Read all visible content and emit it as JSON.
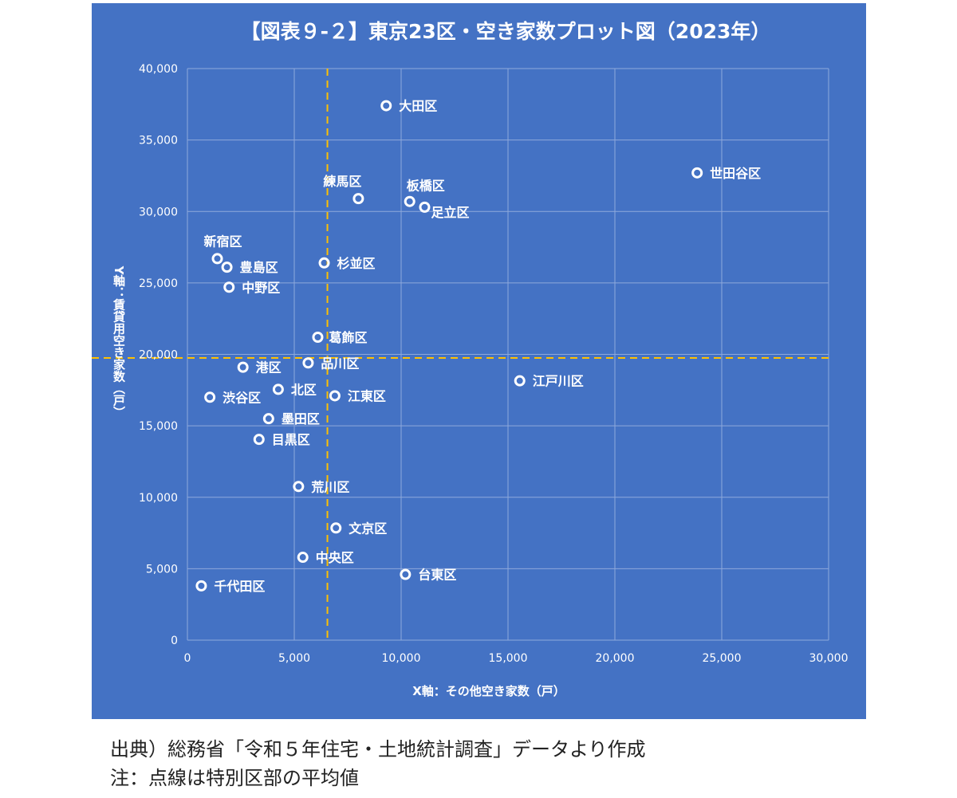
{
  "chart_data": {
    "type": "scatter",
    "title": "【図表９-２】東京23区・空き家数プロット図（2023年）",
    "xlabel": "X軸：その他空き家数（戸）",
    "ylabel": "Y軸：賃貸用空き家数（戸）",
    "xlim": [
      0,
      30000
    ],
    "ylim": [
      0,
      40000
    ],
    "x_ticks": [
      "0",
      "5,000",
      "10,000",
      "15,000",
      "20,000",
      "25,000",
      "30,000"
    ],
    "y_ticks": [
      "0",
      "5,000",
      "10,000",
      "15,000",
      "20,000",
      "25,000",
      "30,000",
      "35,000",
      "40,000"
    ],
    "grid": true,
    "reference_lines": {
      "x_mean": 6550,
      "y_mean": 19750,
      "style": "dashed",
      "color": "#ffc000"
    },
    "colors": {
      "background": "#4472c4",
      "marker": "#ffffff",
      "grid": "#8ea9db",
      "reference": "#ffc000"
    },
    "points": [
      {
        "label": "大田区",
        "x": 9300,
        "y": 37400
      },
      {
        "label": "世田谷区",
        "x": 23850,
        "y": 32700
      },
      {
        "label": "練馬区",
        "x": 8000,
        "y": 30900
      },
      {
        "label": "板橋区",
        "x": 10400,
        "y": 30700
      },
      {
        "label": "足立区",
        "x": 11100,
        "y": 30300
      },
      {
        "label": "新宿区",
        "x": 1400,
        "y": 26700
      },
      {
        "label": "豊島区",
        "x": 1850,
        "y": 26100
      },
      {
        "label": "杉並区",
        "x": 6400,
        "y": 26400
      },
      {
        "label": "中野区",
        "x": 1950,
        "y": 24700
      },
      {
        "label": "葛飾区",
        "x": 6100,
        "y": 21200
      },
      {
        "label": "港区",
        "x": 2600,
        "y": 19100
      },
      {
        "label": "品川区",
        "x": 5650,
        "y": 19400
      },
      {
        "label": "江戸川区",
        "x": 15550,
        "y": 18150
      },
      {
        "label": "渋谷区",
        "x": 1050,
        "y": 17000
      },
      {
        "label": "北区",
        "x": 4250,
        "y": 17550
      },
      {
        "label": "江東区",
        "x": 6900,
        "y": 17100
      },
      {
        "label": "墨田区",
        "x": 3800,
        "y": 15500
      },
      {
        "label": "目黒区",
        "x": 3350,
        "y": 14050
      },
      {
        "label": "荒川区",
        "x": 5200,
        "y": 10750
      },
      {
        "label": "文京区",
        "x": 6950,
        "y": 7850
      },
      {
        "label": "中央区",
        "x": 5400,
        "y": 5800
      },
      {
        "label": "台東区",
        "x": 10200,
        "y": 4600
      },
      {
        "label": "千代田区",
        "x": 650,
        "y": 3800
      }
    ]
  },
  "notes": {
    "source": "出典）総務省「令和５年住宅・土地統計調査」データより作成",
    "note": "注：点線は特別区部の平均値"
  }
}
